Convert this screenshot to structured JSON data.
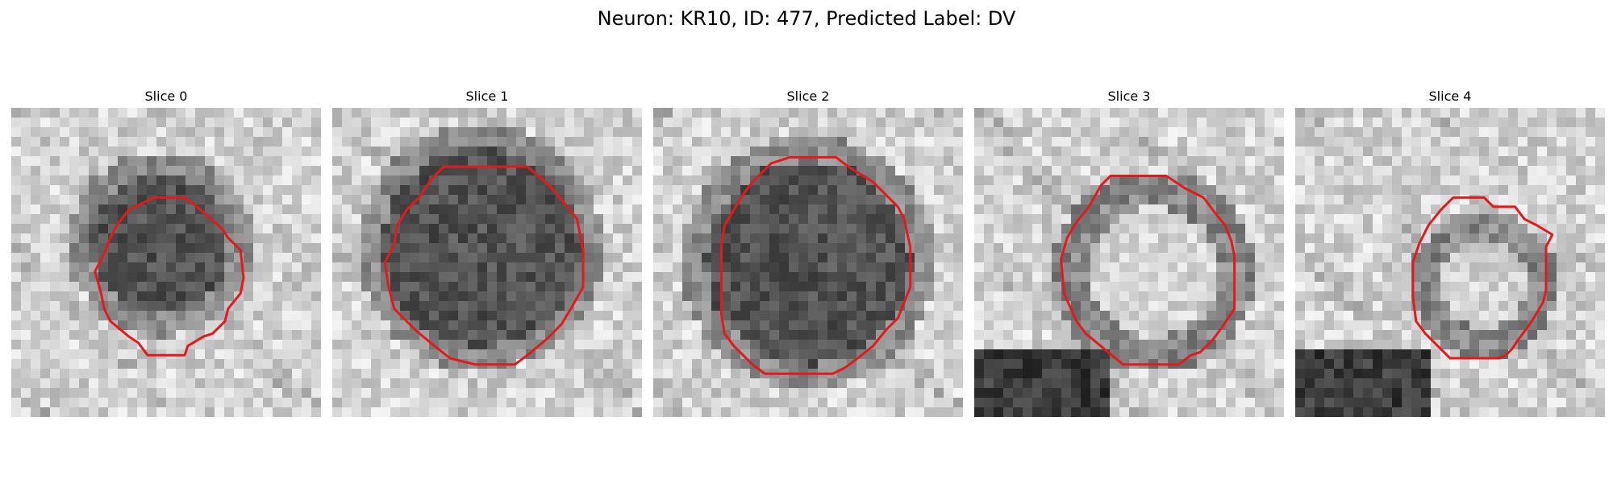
{
  "figure": {
    "title": "Neuron: KR10, ID: 477, Predicted Label: DV"
  },
  "colors": {
    "contour": "#e31a1c",
    "background": "#ffffff"
  },
  "panels": [
    {
      "title": "Slice 0",
      "cell": "dark",
      "center": [
        0.48,
        0.44
      ],
      "radius": 0.22,
      "contour": [
        [
          0.46,
          0.29
        ],
        [
          0.56,
          0.29
        ],
        [
          0.6,
          0.32
        ],
        [
          0.68,
          0.39
        ],
        [
          0.7,
          0.42
        ],
        [
          0.74,
          0.46
        ],
        [
          0.75,
          0.55
        ],
        [
          0.74,
          0.6
        ],
        [
          0.7,
          0.65
        ],
        [
          0.69,
          0.69
        ],
        [
          0.65,
          0.73
        ],
        [
          0.62,
          0.74
        ],
        [
          0.57,
          0.77
        ],
        [
          0.56,
          0.8
        ],
        [
          0.48,
          0.8
        ],
        [
          0.44,
          0.8
        ],
        [
          0.41,
          0.76
        ],
        [
          0.38,
          0.74
        ],
        [
          0.32,
          0.69
        ],
        [
          0.3,
          0.65
        ],
        [
          0.29,
          0.6
        ],
        [
          0.27,
          0.53
        ],
        [
          0.3,
          0.47
        ],
        [
          0.32,
          0.42
        ],
        [
          0.34,
          0.38
        ],
        [
          0.38,
          0.33
        ],
        [
          0.42,
          0.31
        ]
      ]
    },
    {
      "title": "Slice 1",
      "cell": "dark",
      "center": [
        0.48,
        0.45
      ],
      "radius": 0.32,
      "contour": [
        [
          0.36,
          0.19
        ],
        [
          0.63,
          0.19
        ],
        [
          0.7,
          0.25
        ],
        [
          0.76,
          0.32
        ],
        [
          0.79,
          0.36
        ],
        [
          0.81,
          0.46
        ],
        [
          0.81,
          0.58
        ],
        [
          0.77,
          0.65
        ],
        [
          0.74,
          0.7
        ],
        [
          0.69,
          0.75
        ],
        [
          0.63,
          0.8
        ],
        [
          0.59,
          0.83
        ],
        [
          0.51,
          0.83
        ],
        [
          0.46,
          0.83
        ],
        [
          0.38,
          0.81
        ],
        [
          0.33,
          0.77
        ],
        [
          0.27,
          0.72
        ],
        [
          0.2,
          0.65
        ],
        [
          0.18,
          0.57
        ],
        [
          0.17,
          0.5
        ],
        [
          0.2,
          0.44
        ],
        [
          0.21,
          0.38
        ],
        [
          0.24,
          0.33
        ],
        [
          0.28,
          0.29
        ],
        [
          0.32,
          0.23
        ]
      ]
    },
    {
      "title": "Slice 2",
      "cell": "dark",
      "center": [
        0.5,
        0.5
      ],
      "radius": 0.33,
      "contour": [
        [
          0.44,
          0.16
        ],
        [
          0.59,
          0.16
        ],
        [
          0.63,
          0.19
        ],
        [
          0.71,
          0.24
        ],
        [
          0.75,
          0.28
        ],
        [
          0.79,
          0.32
        ],
        [
          0.81,
          0.36
        ],
        [
          0.83,
          0.45
        ],
        [
          0.83,
          0.58
        ],
        [
          0.81,
          0.63
        ],
        [
          0.79,
          0.68
        ],
        [
          0.75,
          0.72
        ],
        [
          0.71,
          0.77
        ],
        [
          0.66,
          0.81
        ],
        [
          0.62,
          0.84
        ],
        [
          0.58,
          0.86
        ],
        [
          0.47,
          0.86
        ],
        [
          0.36,
          0.86
        ],
        [
          0.32,
          0.83
        ],
        [
          0.29,
          0.8
        ],
        [
          0.26,
          0.77
        ],
        [
          0.23,
          0.73
        ],
        [
          0.22,
          0.67
        ],
        [
          0.22,
          0.59
        ],
        [
          0.22,
          0.51
        ],
        [
          0.22,
          0.44
        ],
        [
          0.23,
          0.38
        ],
        [
          0.26,
          0.33
        ],
        [
          0.29,
          0.28
        ],
        [
          0.32,
          0.24
        ],
        [
          0.38,
          0.18
        ]
      ]
    },
    {
      "title": "Slice 3",
      "cell": "light",
      "center": [
        0.58,
        0.53
      ],
      "radius": 0.28,
      "contour": [
        [
          0.44,
          0.22
        ],
        [
          0.62,
          0.22
        ],
        [
          0.68,
          0.26
        ],
        [
          0.74,
          0.29
        ],
        [
          0.77,
          0.33
        ],
        [
          0.81,
          0.38
        ],
        [
          0.83,
          0.43
        ],
        [
          0.84,
          0.48
        ],
        [
          0.84,
          0.65
        ],
        [
          0.8,
          0.71
        ],
        [
          0.77,
          0.75
        ],
        [
          0.73,
          0.79
        ],
        [
          0.7,
          0.8
        ],
        [
          0.66,
          0.83
        ],
        [
          0.48,
          0.83
        ],
        [
          0.42,
          0.78
        ],
        [
          0.36,
          0.73
        ],
        [
          0.33,
          0.69
        ],
        [
          0.29,
          0.6
        ],
        [
          0.28,
          0.49
        ],
        [
          0.3,
          0.42
        ],
        [
          0.33,
          0.37
        ],
        [
          0.37,
          0.32
        ],
        [
          0.41,
          0.25
        ]
      ]
    },
    {
      "title": "Slice 4",
      "cell": "light",
      "center": [
        0.61,
        0.57
      ],
      "radius": 0.19,
      "contour": [
        [
          0.55,
          0.29
        ],
        [
          0.61,
          0.29
        ],
        [
          0.64,
          0.32
        ],
        [
          0.71,
          0.32
        ],
        [
          0.74,
          0.36
        ],
        [
          0.78,
          0.38
        ],
        [
          0.83,
          0.41
        ],
        [
          0.81,
          0.45
        ],
        [
          0.81,
          0.59
        ],
        [
          0.8,
          0.63
        ],
        [
          0.77,
          0.68
        ],
        [
          0.75,
          0.71
        ],
        [
          0.72,
          0.75
        ],
        [
          0.7,
          0.78
        ],
        [
          0.68,
          0.8
        ],
        [
          0.66,
          0.81
        ],
        [
          0.5,
          0.81
        ],
        [
          0.46,
          0.77
        ],
        [
          0.42,
          0.73
        ],
        [
          0.39,
          0.69
        ],
        [
          0.38,
          0.61
        ],
        [
          0.38,
          0.5
        ],
        [
          0.4,
          0.44
        ],
        [
          0.43,
          0.38
        ],
        [
          0.47,
          0.33
        ],
        [
          0.51,
          0.29
        ]
      ]
    }
  ]
}
